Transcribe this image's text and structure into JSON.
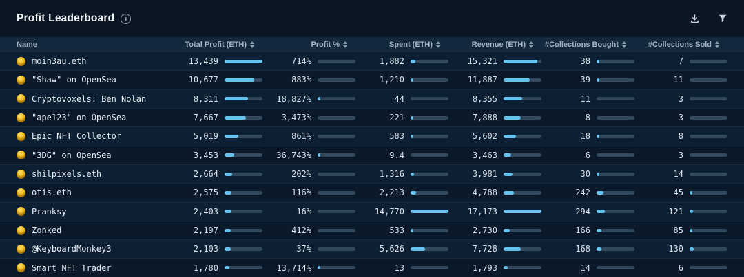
{
  "header": {
    "title": "Profit Leaderboard",
    "icons": {
      "info": "info-circle-icon",
      "download": "download-icon",
      "filter": "funnel-icon"
    }
  },
  "colors": {
    "background": "#0a1826",
    "header_band": "#15293e",
    "row_odd": "#0d2033",
    "row_even": "#0a1a2b",
    "bar_track": "#32485c",
    "bar_fill": "#66c3ef",
    "title_text": "#f4f7fa",
    "header_text": "#a4b4c4",
    "cell_text": "#d9e2ea"
  },
  "table": {
    "columns": [
      {
        "key": "name",
        "label": "Name",
        "sortable": false
      },
      {
        "key": "total_profit",
        "label": "Total Profit (ETH)",
        "sortable": true
      },
      {
        "key": "profit_pct",
        "label": "Profit %",
        "sortable": true
      },
      {
        "key": "spent",
        "label": "Spent (ETH)",
        "sortable": true
      },
      {
        "key": "revenue",
        "label": "Revenue (ETH)",
        "sortable": true
      },
      {
        "key": "collections_bought",
        "label": "#Collections Bought",
        "sortable": true
      },
      {
        "key": "collections_sold",
        "label": "#Collections Sold",
        "sortable": true
      }
    ],
    "row_icon": "money-face-emoji",
    "rows": [
      {
        "name": "moin3au.eth",
        "total_profit": {
          "text": "13,439",
          "fill_pct": 100
        },
        "profit_pct": {
          "text": "714%",
          "fill_pct": 0
        },
        "spent": {
          "text": "1,882",
          "fill_pct": 13
        },
        "revenue": {
          "text": "15,321",
          "fill_pct": 89
        },
        "collections_bought": {
          "text": "38",
          "fill_pct": 2.5
        },
        "collections_sold": {
          "text": "7",
          "fill_pct": 0
        }
      },
      {
        "name": "\"Shaw\" on OpenSea",
        "total_profit": {
          "text": "10,677",
          "fill_pct": 79
        },
        "profit_pct": {
          "text": "883%",
          "fill_pct": 0
        },
        "spent": {
          "text": "1,210",
          "fill_pct": 8
        },
        "revenue": {
          "text": "11,887",
          "fill_pct": 69
        },
        "collections_bought": {
          "text": "39",
          "fill_pct": 2.5
        },
        "collections_sold": {
          "text": "11",
          "fill_pct": 0
        }
      },
      {
        "name": "Cryptovoxels: Ben Nolan",
        "total_profit": {
          "text": "8,311",
          "fill_pct": 62
        },
        "profit_pct": {
          "text": "18,827%",
          "fill_pct": 1.5
        },
        "spent": {
          "text": "44",
          "fill_pct": 0
        },
        "revenue": {
          "text": "8,355",
          "fill_pct": 49
        },
        "collections_bought": {
          "text": "11",
          "fill_pct": 0
        },
        "collections_sold": {
          "text": "3",
          "fill_pct": 0
        }
      },
      {
        "name": "\"ape123\" on OpenSea",
        "total_profit": {
          "text": "7,667",
          "fill_pct": 57
        },
        "profit_pct": {
          "text": "3,473%",
          "fill_pct": 0
        },
        "spent": {
          "text": "221",
          "fill_pct": 1.5
        },
        "revenue": {
          "text": "7,888",
          "fill_pct": 46
        },
        "collections_bought": {
          "text": "8",
          "fill_pct": 0
        },
        "collections_sold": {
          "text": "3",
          "fill_pct": 0
        }
      },
      {
        "name": "Epic NFT Collector",
        "total_profit": {
          "text": "5,019",
          "fill_pct": 37
        },
        "profit_pct": {
          "text": "861%",
          "fill_pct": 0
        },
        "spent": {
          "text": "583",
          "fill_pct": 4
        },
        "revenue": {
          "text": "5,602",
          "fill_pct": 33
        },
        "collections_bought": {
          "text": "18",
          "fill_pct": 1.5
        },
        "collections_sold": {
          "text": "8",
          "fill_pct": 0
        }
      },
      {
        "name": "\"3DG\" on OpenSea",
        "total_profit": {
          "text": "3,453",
          "fill_pct": 26
        },
        "profit_pct": {
          "text": "36,743%",
          "fill_pct": 4
        },
        "spent": {
          "text": "9.4",
          "fill_pct": 0
        },
        "revenue": {
          "text": "3,463",
          "fill_pct": 20
        },
        "collections_bought": {
          "text": "6",
          "fill_pct": 0
        },
        "collections_sold": {
          "text": "3",
          "fill_pct": 0
        }
      },
      {
        "name": "shilpixels.eth",
        "total_profit": {
          "text": "2,664",
          "fill_pct": 20
        },
        "profit_pct": {
          "text": "202%",
          "fill_pct": 0
        },
        "spent": {
          "text": "1,316",
          "fill_pct": 9
        },
        "revenue": {
          "text": "3,981",
          "fill_pct": 23
        },
        "collections_bought": {
          "text": "30",
          "fill_pct": 2
        },
        "collections_sold": {
          "text": "14",
          "fill_pct": 0
        }
      },
      {
        "name": "otis.eth",
        "total_profit": {
          "text": "2,575",
          "fill_pct": 19
        },
        "profit_pct": {
          "text": "116%",
          "fill_pct": 0
        },
        "spent": {
          "text": "2,213",
          "fill_pct": 15
        },
        "revenue": {
          "text": "4,788",
          "fill_pct": 28
        },
        "collections_bought": {
          "text": "242",
          "fill_pct": 18
        },
        "collections_sold": {
          "text": "45",
          "fill_pct": 3
        }
      },
      {
        "name": "Pranksy",
        "total_profit": {
          "text": "2,403",
          "fill_pct": 18
        },
        "profit_pct": {
          "text": "16%",
          "fill_pct": 0
        },
        "spent": {
          "text": "14,770",
          "fill_pct": 100
        },
        "revenue": {
          "text": "17,173",
          "fill_pct": 100
        },
        "collections_bought": {
          "text": "294",
          "fill_pct": 22
        },
        "collections_sold": {
          "text": "121",
          "fill_pct": 9
        }
      },
      {
        "name": "Zonked",
        "total_profit": {
          "text": "2,197",
          "fill_pct": 16
        },
        "profit_pct": {
          "text": "412%",
          "fill_pct": 0
        },
        "spent": {
          "text": "533",
          "fill_pct": 4
        },
        "revenue": {
          "text": "2,730",
          "fill_pct": 16
        },
        "collections_bought": {
          "text": "166",
          "fill_pct": 12
        },
        "collections_sold": {
          "text": "85",
          "fill_pct": 6.5
        }
      },
      {
        "name": "@KeyboardMonkey3",
        "total_profit": {
          "text": "2,103",
          "fill_pct": 16
        },
        "profit_pct": {
          "text": "37%",
          "fill_pct": 0
        },
        "spent": {
          "text": "5,626",
          "fill_pct": 38
        },
        "revenue": {
          "text": "7,728",
          "fill_pct": 45
        },
        "collections_bought": {
          "text": "168",
          "fill_pct": 12
        },
        "collections_sold": {
          "text": "130",
          "fill_pct": 10
        }
      },
      {
        "name": "Smart NFT Trader",
        "total_profit": {
          "text": "1,780",
          "fill_pct": 13
        },
        "profit_pct": {
          "text": "13,714%",
          "fill_pct": 1.5
        },
        "spent": {
          "text": "13",
          "fill_pct": 0
        },
        "revenue": {
          "text": "1,793",
          "fill_pct": 10
        },
        "collections_bought": {
          "text": "14",
          "fill_pct": 0
        },
        "collections_sold": {
          "text": "6",
          "fill_pct": 0
        }
      }
    ]
  }
}
